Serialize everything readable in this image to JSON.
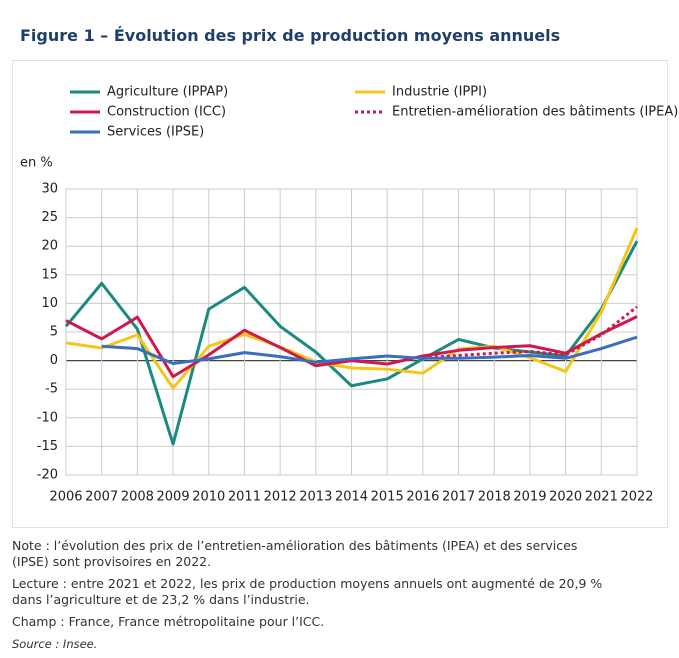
{
  "chart_data": {
    "type": "line",
    "title": "Figure 1 – Évolution des prix de production moyens annuels",
    "y_label": "en %",
    "x": [
      2006,
      2007,
      2008,
      2009,
      2010,
      2011,
      2012,
      2013,
      2014,
      2015,
      2016,
      2017,
      2018,
      2019,
      2020,
      2021,
      2022
    ],
    "xlim": [
      2006,
      2022
    ],
    "xticks": [
      2006,
      2007,
      2008,
      2009,
      2010,
      2011,
      2012,
      2013,
      2014,
      2015,
      2016,
      2017,
      2018,
      2019,
      2020,
      2021,
      2022
    ],
    "ylim": [
      -20,
      30
    ],
    "yticks": [
      -20,
      -15,
      -10,
      -5,
      0,
      5,
      10,
      15,
      20,
      25,
      30
    ],
    "grid": true,
    "series": [
      {
        "name": "Agriculture (IPPAP)",
        "color": "#1a8a80",
        "style": "solid",
        "values": [
          6,
          13.5,
          5.5,
          -14.6,
          9,
          12.8,
          6,
          1.5,
          -4.4,
          -3.2,
          0.3,
          3.7,
          2.2,
          1.5,
          0.8,
          9,
          20.9
        ]
      },
      {
        "name": "Industrie (IPPI)",
        "color": "#f5c518",
        "style": "solid",
        "values": [
          3.1,
          2.2,
          4.5,
          -4.8,
          2.5,
          4.6,
          2.4,
          -0.2,
          -1.3,
          -1.5,
          -2.2,
          2.0,
          2.5,
          0.5,
          -1.9,
          8.5,
          23.2
        ]
      },
      {
        "name": "Construction (ICC)",
        "color": "#d0184c",
        "style": "solid",
        "values": [
          7.0,
          3.8,
          7.6,
          -2.8,
          1.0,
          5.3,
          2.3,
          -0.9,
          0.0,
          -0.6,
          0.8,
          1.8,
          2.3,
          2.6,
          1.3,
          4.7,
          7.7
        ]
      },
      {
        "name": "Entretien-amélioration des bâtiments (IPEA)",
        "color": "#d0184c",
        "style": "dotted",
        "values": [
          null,
          null,
          null,
          null,
          null,
          null,
          null,
          null,
          null,
          null,
          0.5,
          0.9,
          1.3,
          1.6,
          1.0,
          4.5,
          9.4
        ]
      },
      {
        "name": "Services (IPSE)",
        "color": "#3a6ec0",
        "style": "solid",
        "values": [
          null,
          2.5,
          2.1,
          -0.5,
          0.3,
          1.4,
          0.7,
          -0.3,
          0.3,
          0.8,
          0.4,
          0.4,
          0.6,
          0.9,
          0.4,
          2.1,
          4.1
        ]
      }
    ]
  },
  "notes": [
    "Note : l’évolution des prix de l’entretien-amélioration des bâtiments (IPEA) et des services (IPSE) sont provisoires en 2022.",
    "Lecture : entre 2021 et 2022, les prix de production moyens annuels ont augmenté de 20,9 % dans l’agriculture et de 23,2 % dans l’industrie.",
    "Champ : France, France métropolitaine pour l’ICC.",
    "Source : Insee."
  ]
}
